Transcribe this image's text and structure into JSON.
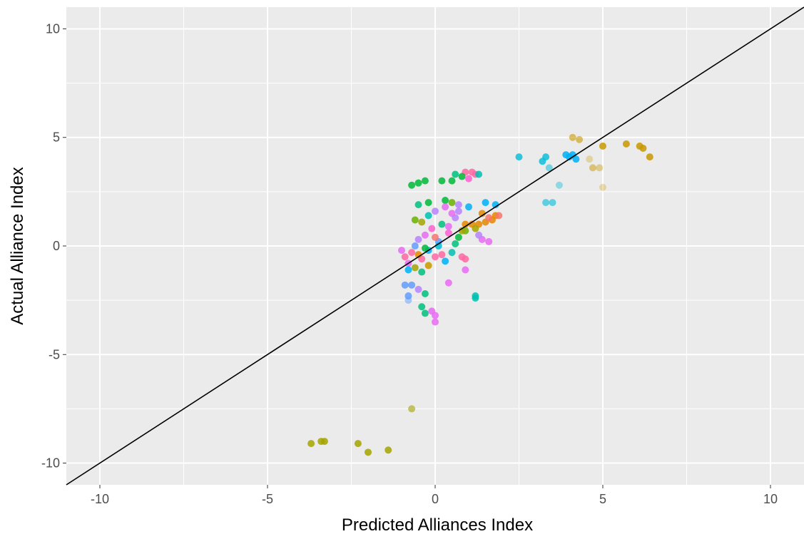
{
  "chart_data": {
    "type": "scatter",
    "title": "",
    "xlabel": "Predicted Alliances Index",
    "ylabel": "Actual Alliance Index",
    "xlim": [
      -11,
      11
    ],
    "ylim": [
      -11,
      11
    ],
    "x_ticks": [
      -10,
      -5,
      0,
      5,
      10
    ],
    "y_ticks": [
      -10,
      -5,
      0,
      5,
      10
    ],
    "x_tick_labels": [
      "-10",
      "-5",
      "0",
      "5",
      "10"
    ],
    "y_tick_labels": [
      "-10",
      "-5",
      "0",
      "5",
      "10"
    ],
    "grid": true,
    "legend": "none",
    "reference_line": {
      "slope": 1,
      "intercept": 0,
      "color": "#000000"
    },
    "panel_background": "#ebebeb",
    "palette": [
      "#F8766D",
      "#E58700",
      "#C99800",
      "#A3A500",
      "#6BB100",
      "#00BA38",
      "#00BF7D",
      "#00C0AF",
      "#00BCD8",
      "#00B0F6",
      "#619CFF",
      "#B983FF",
      "#E76BF3",
      "#FD61D1",
      "#FF67A4"
    ],
    "points": [
      {
        "x": -3.7,
        "y": -9.1,
        "c": 3
      },
      {
        "x": -3.4,
        "y": -9.0,
        "c": 3
      },
      {
        "x": -3.3,
        "y": -9.0,
        "c": 3
      },
      {
        "x": -2.3,
        "y": -9.1,
        "c": 3
      },
      {
        "x": -2.0,
        "y": -9.5,
        "c": 3
      },
      {
        "x": -1.4,
        "y": -9.4,
        "c": 3
      },
      {
        "x": -0.7,
        "y": -7.5,
        "c": 3,
        "a": 0.6
      },
      {
        "x": 4.1,
        "y": 5.0,
        "c": 2,
        "a": 0.6
      },
      {
        "x": 4.3,
        "y": 4.9,
        "c": 2,
        "a": 0.6
      },
      {
        "x": 5.0,
        "y": 4.6,
        "c": 2
      },
      {
        "x": 5.7,
        "y": 4.7,
        "c": 2
      },
      {
        "x": 6.1,
        "y": 4.6,
        "c": 2
      },
      {
        "x": 6.2,
        "y": 4.5,
        "c": 2
      },
      {
        "x": 6.4,
        "y": 4.1,
        "c": 2
      },
      {
        "x": 4.6,
        "y": 4.0,
        "c": 2,
        "a": 0.3
      },
      {
        "x": 4.7,
        "y": 3.6,
        "c": 2,
        "a": 0.5
      },
      {
        "x": 4.9,
        "y": 3.6,
        "c": 2,
        "a": 0.4
      },
      {
        "x": 5.0,
        "y": 2.7,
        "c": 2,
        "a": 0.3
      },
      {
        "x": 2.5,
        "y": 4.1,
        "c": 8,
        "a": 0.8
      },
      {
        "x": 3.2,
        "y": 3.9,
        "c": 8,
        "a": 0.8
      },
      {
        "x": 3.3,
        "y": 4.1,
        "c": 8,
        "a": 0.8
      },
      {
        "x": 3.4,
        "y": 3.6,
        "c": 8,
        "a": 0.5
      },
      {
        "x": 3.7,
        "y": 2.8,
        "c": 8,
        "a": 0.4
      },
      {
        "x": 3.3,
        "y": 2.0,
        "c": 8,
        "a": 0.6
      },
      {
        "x": 3.5,
        "y": 2.0,
        "c": 8,
        "a": 0.6
      },
      {
        "x": 3.9,
        "y": 4.2,
        "c": 9
      },
      {
        "x": 4.1,
        "y": 4.2,
        "c": 9
      },
      {
        "x": 4.2,
        "y": 4.0,
        "c": 9
      },
      {
        "x": 4.0,
        "y": 4.1,
        "c": 9
      },
      {
        "x": -0.7,
        "y": 2.8,
        "c": 5
      },
      {
        "x": -0.5,
        "y": 2.9,
        "c": 5
      },
      {
        "x": -0.3,
        "y": 3.0,
        "c": 5
      },
      {
        "x": 0.2,
        "y": 3.0,
        "c": 5
      },
      {
        "x": 0.5,
        "y": 3.0,
        "c": 5
      },
      {
        "x": 0.6,
        "y": 3.3,
        "c": 6
      },
      {
        "x": 0.9,
        "y": 3.4,
        "c": 14
      },
      {
        "x": 1.1,
        "y": 3.4,
        "c": 14
      },
      {
        "x": 1.2,
        "y": 3.3,
        "c": 14
      },
      {
        "x": 0.8,
        "y": 3.2,
        "c": 5
      },
      {
        "x": 1.3,
        "y": 3.3,
        "c": 7
      },
      {
        "x": 1.0,
        "y": 3.1,
        "c": 13
      },
      {
        "x": -0.5,
        "y": 1.9,
        "c": 6
      },
      {
        "x": -0.2,
        "y": 2.0,
        "c": 5
      },
      {
        "x": 0.3,
        "y": 2.1,
        "c": 5
      },
      {
        "x": 0.5,
        "y": 2.0,
        "c": 4
      },
      {
        "x": 0.7,
        "y": 1.9,
        "c": 11
      },
      {
        "x": 1.0,
        "y": 1.8,
        "c": 9
      },
      {
        "x": 1.5,
        "y": 2.0,
        "c": 9
      },
      {
        "x": 1.8,
        "y": 1.9,
        "c": 9
      },
      {
        "x": 0.9,
        "y": 1.0,
        "c": 1
      },
      {
        "x": 1.1,
        "y": 1.0,
        "c": 1
      },
      {
        "x": 1.3,
        "y": 1.0,
        "c": 1
      },
      {
        "x": 1.5,
        "y": 1.1,
        "c": 1
      },
      {
        "x": 1.7,
        "y": 1.2,
        "c": 1
      },
      {
        "x": 1.8,
        "y": 1.4,
        "c": 1
      },
      {
        "x": 1.9,
        "y": 1.4,
        "c": 0
      },
      {
        "x": 1.6,
        "y": 1.3,
        "c": 0
      },
      {
        "x": 1.4,
        "y": 1.5,
        "c": 1
      },
      {
        "x": 0.9,
        "y": 0.7,
        "c": 4
      },
      {
        "x": 1.2,
        "y": 0.8,
        "c": 3
      },
      {
        "x": 1.4,
        "y": 0.3,
        "c": 12
      },
      {
        "x": 1.6,
        "y": 0.2,
        "c": 12
      },
      {
        "x": 1.3,
        "y": 0.5,
        "c": 11
      },
      {
        "x": -1.0,
        "y": -0.2,
        "c": 12
      },
      {
        "x": -0.9,
        "y": -0.5,
        "c": 14
      },
      {
        "x": -0.8,
        "y": -0.8,
        "c": 12
      },
      {
        "x": -0.7,
        "y": -0.3,
        "c": 14
      },
      {
        "x": -0.6,
        "y": 0.0,
        "c": 10
      },
      {
        "x": -0.5,
        "y": 0.3,
        "c": 11
      },
      {
        "x": -0.4,
        "y": -0.6,
        "c": 14
      },
      {
        "x": -0.3,
        "y": 0.5,
        "c": 12
      },
      {
        "x": -0.2,
        "y": -0.2,
        "c": 9
      },
      {
        "x": -0.1,
        "y": 0.8,
        "c": 13
      },
      {
        "x": 0.0,
        "y": -0.5,
        "c": 14
      },
      {
        "x": 0.1,
        "y": 0.2,
        "c": 10
      },
      {
        "x": 0.2,
        "y": 1.0,
        "c": 6
      },
      {
        "x": 0.3,
        "y": -0.7,
        "c": 9
      },
      {
        "x": 0.4,
        "y": 0.6,
        "c": 13
      },
      {
        "x": 0.5,
        "y": -0.3,
        "c": 7
      },
      {
        "x": 0.6,
        "y": 1.3,
        "c": 11
      },
      {
        "x": 0.7,
        "y": 0.4,
        "c": 5
      },
      {
        "x": 0.8,
        "y": -0.5,
        "c": 14
      },
      {
        "x": 0.9,
        "y": -0.6,
        "c": 14
      },
      {
        "x": -0.6,
        "y": 1.2,
        "c": 4
      },
      {
        "x": -0.4,
        "y": 1.1,
        "c": 3
      },
      {
        "x": -0.2,
        "y": 1.4,
        "c": 7
      },
      {
        "x": 0.0,
        "y": 1.6,
        "c": 11
      },
      {
        "x": 0.3,
        "y": 1.8,
        "c": 12
      },
      {
        "x": 0.5,
        "y": 1.5,
        "c": 12
      },
      {
        "x": 0.7,
        "y": 1.6,
        "c": 11
      },
      {
        "x": 0.1,
        "y": 0.0,
        "c": 8
      },
      {
        "x": 0.0,
        "y": 0.4,
        "c": 0
      },
      {
        "x": -0.3,
        "y": -0.1,
        "c": 5
      },
      {
        "x": -0.5,
        "y": -0.4,
        "c": 1
      },
      {
        "x": -0.8,
        "y": -1.1,
        "c": 9
      },
      {
        "x": -0.6,
        "y": -1.0,
        "c": 3
      },
      {
        "x": -0.4,
        "y": -1.2,
        "c": 6
      },
      {
        "x": -0.2,
        "y": -0.9,
        "c": 2
      },
      {
        "x": 0.2,
        "y": -0.4,
        "c": 14
      },
      {
        "x": 0.4,
        "y": 0.9,
        "c": 12
      },
      {
        "x": 0.6,
        "y": 0.1,
        "c": 6
      },
      {
        "x": 0.8,
        "y": 0.7,
        "c": 3
      },
      {
        "x": -0.9,
        "y": -1.8,
        "c": 10
      },
      {
        "x": -0.7,
        "y": -1.8,
        "c": 10
      },
      {
        "x": -0.8,
        "y": -2.3,
        "c": 10
      },
      {
        "x": -0.8,
        "y": -2.5,
        "c": 10,
        "a": 0.5
      },
      {
        "x": -0.5,
        "y": -2.0,
        "c": 11
      },
      {
        "x": -0.3,
        "y": -2.2,
        "c": 6
      },
      {
        "x": 0.4,
        "y": -1.7,
        "c": 12
      },
      {
        "x": 0.9,
        "y": -1.1,
        "c": 12
      },
      {
        "x": 1.2,
        "y": -2.4,
        "c": 7
      },
      {
        "x": 1.2,
        "y": -2.3,
        "c": 7
      },
      {
        "x": -0.4,
        "y": -2.8,
        "c": 6
      },
      {
        "x": -0.3,
        "y": -3.1,
        "c": 6
      },
      {
        "x": -0.1,
        "y": -3.0,
        "c": 12
      },
      {
        "x": 0.0,
        "y": -3.2,
        "c": 12
      },
      {
        "x": 0.0,
        "y": -3.5,
        "c": 12
      }
    ]
  }
}
